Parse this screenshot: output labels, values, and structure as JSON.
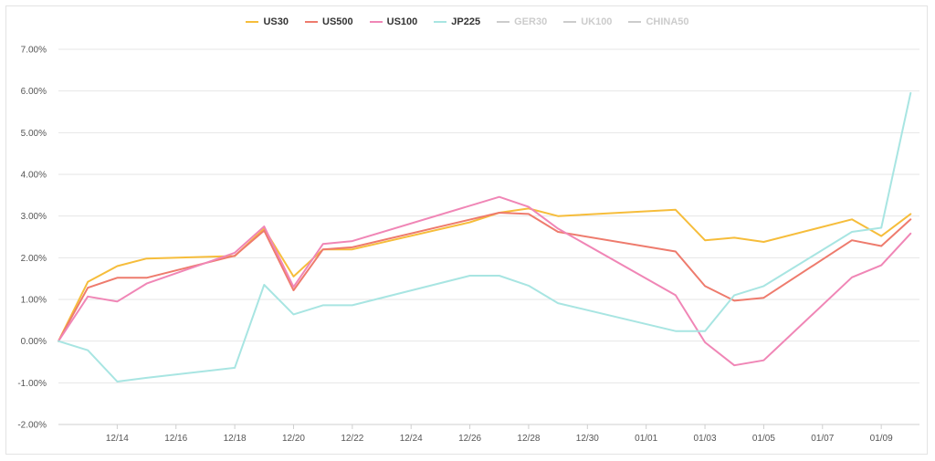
{
  "chart_data": {
    "type": "line",
    "title": "",
    "xlabel": "",
    "ylabel": "",
    "ylim": [
      -2,
      7
    ],
    "y_ticks": [
      "7.00%",
      "6.00%",
      "5.00%",
      "4.00%",
      "3.00%",
      "2.00%",
      "1.00%",
      "0.00%",
      "-1.00%",
      "-2.00%"
    ],
    "y_tick_values": [
      7,
      6,
      5,
      4,
      3,
      2,
      1,
      0,
      -1,
      -2
    ],
    "x_ticks": [
      "12/14",
      "12/16",
      "12/18",
      "12/20",
      "12/22",
      "12/24",
      "12/26",
      "12/28",
      "12/30",
      "01/01",
      "01/03",
      "01/05",
      "01/07",
      "01/09"
    ],
    "x_tick_days": [
      2,
      4,
      6,
      8,
      10,
      12,
      14,
      16,
      18,
      20,
      22,
      24,
      26,
      28
    ],
    "x_range_days": [
      0,
      29.3
    ],
    "grid": true,
    "legend_position": "top-center",
    "series": [
      {
        "name": "US30",
        "color": "#f6bd3b",
        "visible": true,
        "points": [
          [
            0,
            0
          ],
          [
            1,
            1.42
          ],
          [
            2,
            1.8
          ],
          [
            3,
            1.98
          ],
          [
            6,
            2.04
          ],
          [
            7,
            2.7
          ],
          [
            8,
            1.55
          ],
          [
            9,
            2.2
          ],
          [
            10,
            2.2
          ],
          [
            14,
            2.85
          ],
          [
            15,
            3.08
          ],
          [
            16,
            3.18
          ],
          [
            17,
            3.0
          ],
          [
            21,
            3.15
          ],
          [
            22,
            2.42
          ],
          [
            23,
            2.48
          ],
          [
            24,
            2.38
          ],
          [
            27,
            2.92
          ],
          [
            28,
            2.52
          ],
          [
            29,
            3.05
          ]
        ]
      },
      {
        "name": "US500",
        "color": "#ee7b6d",
        "visible": true,
        "points": [
          [
            0,
            0
          ],
          [
            1,
            1.28
          ],
          [
            2,
            1.52
          ],
          [
            3,
            1.52
          ],
          [
            6,
            2.05
          ],
          [
            7,
            2.65
          ],
          [
            8,
            1.22
          ],
          [
            9,
            2.2
          ],
          [
            10,
            2.25
          ],
          [
            15,
            3.08
          ],
          [
            16,
            3.05
          ],
          [
            17,
            2.62
          ],
          [
            21,
            2.15
          ],
          [
            22,
            1.32
          ],
          [
            23,
            0.97
          ],
          [
            24,
            1.04
          ],
          [
            27,
            2.42
          ],
          [
            28,
            2.28
          ],
          [
            29,
            2.92
          ]
        ]
      },
      {
        "name": "US100",
        "color": "#f086b6",
        "visible": true,
        "points": [
          [
            0,
            0
          ],
          [
            1,
            1.07
          ],
          [
            2,
            0.95
          ],
          [
            3,
            1.38
          ],
          [
            6,
            2.12
          ],
          [
            7,
            2.75
          ],
          [
            8,
            1.3
          ],
          [
            9,
            2.33
          ],
          [
            10,
            2.4
          ],
          [
            15,
            3.46
          ],
          [
            16,
            3.22
          ],
          [
            17,
            2.7
          ],
          [
            21,
            1.1
          ],
          [
            22,
            -0.03
          ],
          [
            23,
            -0.58
          ],
          [
            24,
            -0.46
          ],
          [
            27,
            1.53
          ],
          [
            28,
            1.82
          ],
          [
            29,
            2.58
          ]
        ]
      },
      {
        "name": "JP225",
        "color": "#a8e5e2",
        "visible": true,
        "points": [
          [
            0,
            0
          ],
          [
            1,
            -0.22
          ],
          [
            2,
            -0.97
          ],
          [
            3,
            -0.88
          ],
          [
            6,
            -0.64
          ],
          [
            7,
            1.35
          ],
          [
            8,
            0.64
          ],
          [
            9,
            0.86
          ],
          [
            10,
            0.86
          ],
          [
            14,
            1.57
          ],
          [
            15,
            1.57
          ],
          [
            16,
            1.33
          ],
          [
            17,
            0.91
          ],
          [
            21,
            0.24
          ],
          [
            22,
            0.24
          ],
          [
            23,
            1.1
          ],
          [
            24,
            1.32
          ],
          [
            27,
            2.62
          ],
          [
            28,
            2.72
          ],
          [
            29,
            5.95
          ]
        ]
      },
      {
        "name": "GER30",
        "color": "#cccccc",
        "visible": false,
        "points": []
      },
      {
        "name": "UK100",
        "color": "#cccccc",
        "visible": false,
        "points": []
      },
      {
        "name": "CHINA50",
        "color": "#cccccc",
        "visible": false,
        "points": []
      }
    ]
  }
}
